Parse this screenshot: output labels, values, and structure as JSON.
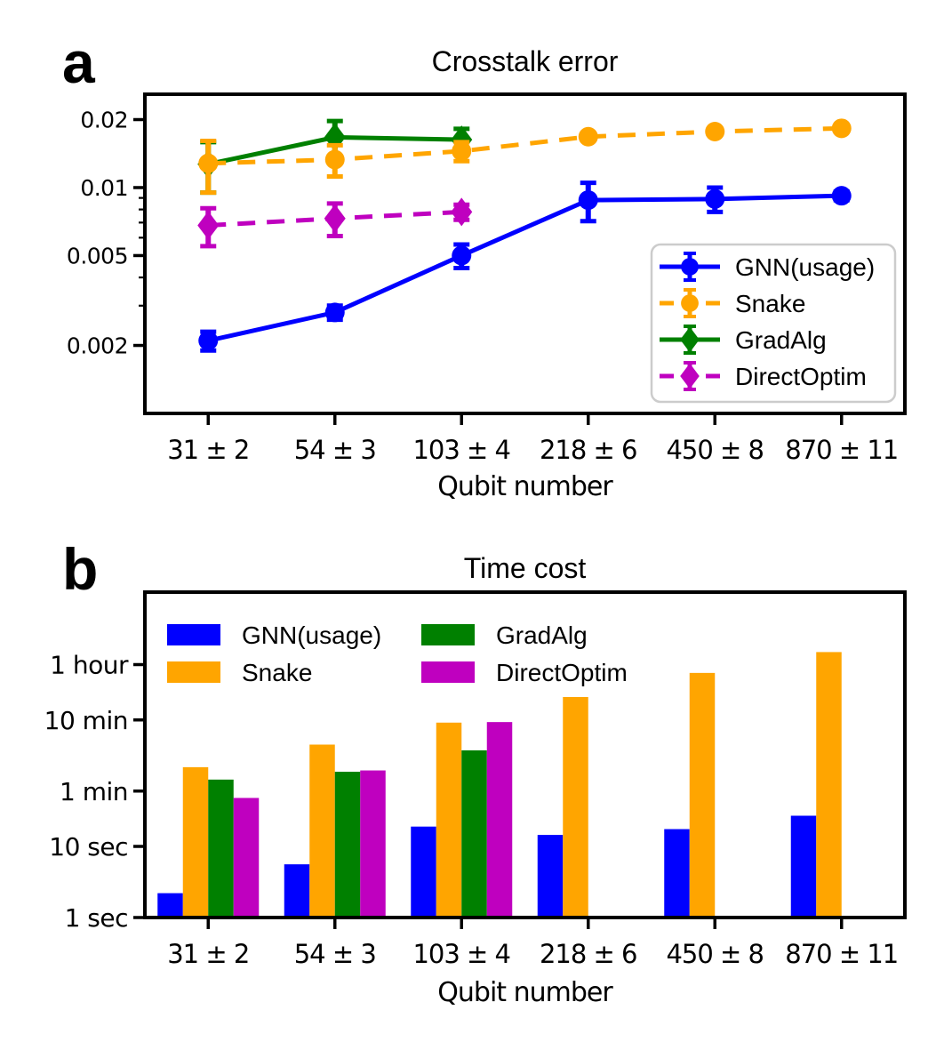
{
  "figure": {
    "panels": [
      {
        "letter": "a"
      },
      {
        "letter": "b"
      }
    ]
  },
  "chart_data": [
    {
      "type": "line",
      "panel": "a",
      "title": "Crosstalk error",
      "xlabel": "Qubit number",
      "ylabel": "",
      "yscale": "log",
      "ylim": [
        0.001,
        0.0259
      ],
      "grid": false,
      "legend": {
        "position": "lower right",
        "frame": true,
        "entries": [
          "GNN(usage)",
          "Snake",
          "GradAlg",
          "DirectOptim"
        ]
      },
      "categories": [
        "31 ± 2",
        "54 ± 3",
        "103 ± 4",
        "218 ± 6",
        "450 ± 8",
        "870 ± 11"
      ],
      "yticks": [
        {
          "value": 0.02,
          "label": "0.02"
        },
        {
          "value": 0.01,
          "label": "0.01"
        },
        {
          "value": 0.005,
          "label": "0.005"
        },
        {
          "value": 0.002,
          "label": "0.002"
        }
      ],
      "minor_yticks": [
        0.009,
        0.008,
        0.007,
        0.006,
        0.004,
        0.003
      ],
      "series": [
        {
          "name": "GNN(usage)",
          "color": "#0000FF",
          "linestyle": "solid",
          "marker": "circle",
          "values": [
            0.0021,
            0.0028,
            0.005,
            0.0088,
            0.0089,
            0.0092
          ],
          "errors": [
            0.0002,
            0.0002,
            0.0006,
            0.0017,
            0.0011,
            0.0004
          ]
        },
        {
          "name": "Snake",
          "color": "#FFA500",
          "linestyle": "dashed",
          "marker": "circle",
          "values": [
            0.0128,
            0.0133,
            0.0145,
            0.0168,
            0.0177,
            0.0183
          ],
          "errors": [
            0.0033,
            0.0021,
            0.0014,
            0.0005,
            0.0005,
            0.0004
          ]
        },
        {
          "name": "GradAlg",
          "color": "#008000",
          "linestyle": "solid",
          "marker": "diamond",
          "values": [
            0.0127,
            0.0167,
            0.0163,
            null,
            null,
            null
          ],
          "errors": [
            0.0032,
            0.003,
            0.0019,
            null,
            null,
            null
          ]
        },
        {
          "name": "DirectOptim",
          "color": "#BF00BF",
          "linestyle": "dashed",
          "marker": "diamond",
          "values": [
            0.0068,
            0.0073,
            0.0078,
            null,
            null,
            null
          ],
          "errors": [
            0.0013,
            0.0012,
            0.0006,
            null,
            null,
            null
          ]
        }
      ]
    },
    {
      "type": "bar",
      "panel": "b",
      "title": "Time cost",
      "xlabel": "Qubit number",
      "ylabel": "",
      "yscale": "log",
      "unit": "seconds",
      "ylim": [
        1,
        37600
      ],
      "grid": false,
      "legend": {
        "position": "upper left",
        "frame": false,
        "columns": 2,
        "entries": [
          "GNN(usage)",
          "Snake",
          "GradAlg",
          "DirectOptim"
        ]
      },
      "categories": [
        "31 ± 2",
        "54 ± 3",
        "103 ± 4",
        "218 ± 6",
        "450 ± 8",
        "870 ± 11"
      ],
      "yticks": [
        {
          "value": 3600,
          "label": "1 hour"
        },
        {
          "value": 600,
          "label": "10 min"
        },
        {
          "value": 60,
          "label": "1 min"
        },
        {
          "value": 10,
          "label": "10 sec"
        },
        {
          "value": 1,
          "label": "1 sec"
        }
      ],
      "series": [
        {
          "name": "GNN(usage)",
          "color": "#0000FF",
          "values": [
            2.2,
            5.6,
            19,
            14.5,
            17.5,
            27
          ]
        },
        {
          "name": "Snake",
          "color": "#FFA500",
          "values": [
            130,
            270,
            550,
            1260,
            2750,
            5400
          ]
        },
        {
          "name": "GradAlg",
          "color": "#008000",
          "values": [
            87,
            112,
            224,
            null,
            null,
            null
          ]
        },
        {
          "name": "DirectOptim",
          "color": "#BF00BF",
          "values": [
            48,
            117,
            560,
            null,
            null,
            null
          ]
        }
      ]
    }
  ]
}
